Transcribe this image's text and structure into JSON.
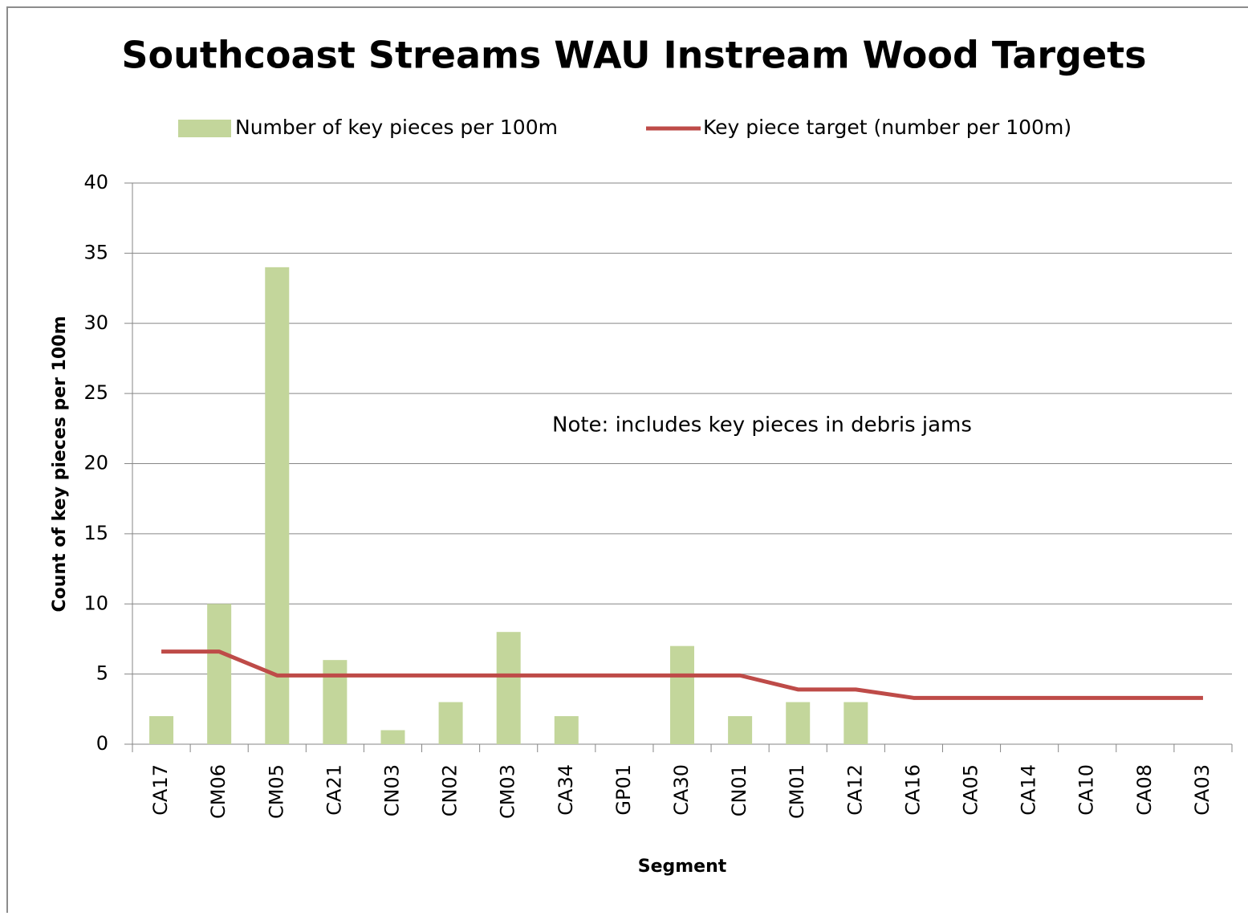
{
  "chart_data": {
    "type": "bar",
    "title": "Southcoast Streams WAU Instream Wood Targets",
    "x_label": "Segment",
    "y_label": "Count of key pieces per 100m",
    "annotation": "Note: includes key pieces in debris jams",
    "categories": [
      "CA17",
      "CM06",
      "CM05",
      "CA21",
      "CN03",
      "CN02",
      "CM03",
      "CA34",
      "GP01",
      "CA30",
      "CN01",
      "CM01",
      "CA12",
      "CA16",
      "CA05",
      "CA14",
      "CA10",
      "CA08",
      "CA03"
    ],
    "series": [
      {
        "name": "Number of key pieces per 100m",
        "type": "bar",
        "color": "#c3d69b",
        "values": [
          2,
          10,
          34,
          6,
          1,
          3,
          8,
          2,
          null,
          7,
          2,
          3,
          3,
          null,
          null,
          null,
          null,
          null,
          null
        ]
      },
      {
        "name": "Key piece target (number per 100m)",
        "type": "line",
        "color": "#be4b48",
        "values": [
          6.6,
          6.6,
          4.9,
          4.9,
          4.9,
          4.9,
          4.9,
          4.9,
          4.9,
          4.9,
          4.9,
          3.9,
          3.9,
          3.3,
          3.3,
          3.3,
          3.3,
          3.3,
          3.3
        ]
      }
    ],
    "ylim": [
      0,
      40
    ],
    "yticks": [
      0,
      5,
      10,
      15,
      20,
      25,
      30,
      35,
      40
    ],
    "grid": true,
    "legend": "top"
  }
}
